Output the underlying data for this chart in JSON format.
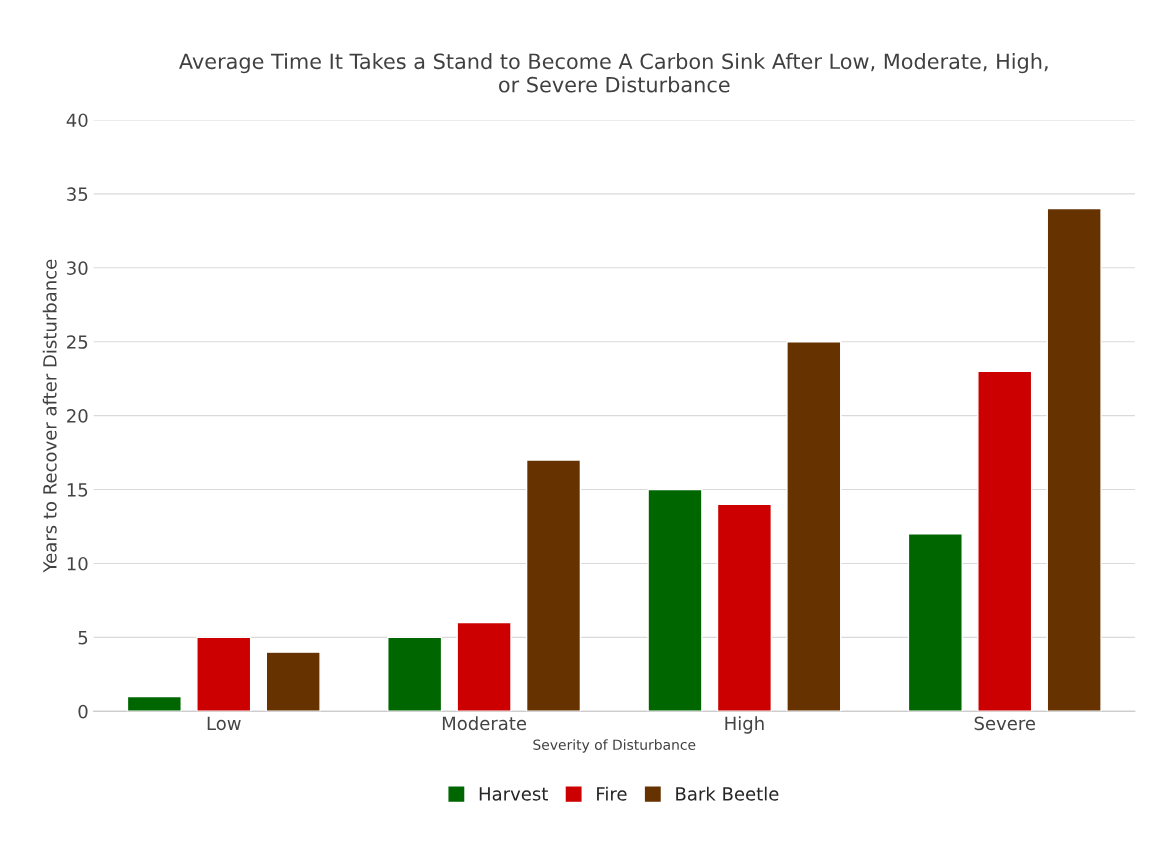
{
  "chart_data": {
    "type": "bar",
    "title": "Average Time It Takes a Stand to Become A Carbon Sink After Low, Moderate, High,\nor Severe Disturbance",
    "xlabel": "Severity of Disturbance",
    "ylabel": "Years to Recover after Disturbance",
    "categories": [
      "Low",
      "Moderate",
      "High",
      "Severe"
    ],
    "series": [
      {
        "name": "Harvest",
        "color": "#006600",
        "values": [
          1,
          5,
          15,
          12
        ]
      },
      {
        "name": "Fire",
        "color": "#cc0000",
        "values": [
          5,
          6,
          14,
          23
        ]
      },
      {
        "name": "Bark Beetle",
        "color": "#663300",
        "values": [
          4,
          17,
          25,
          34
        ]
      }
    ],
    "ylim": [
      0,
      40
    ],
    "yticks": [
      0,
      5,
      10,
      15,
      20,
      25,
      30,
      35,
      40
    ],
    "grid": "y",
    "legend": "bottom"
  }
}
